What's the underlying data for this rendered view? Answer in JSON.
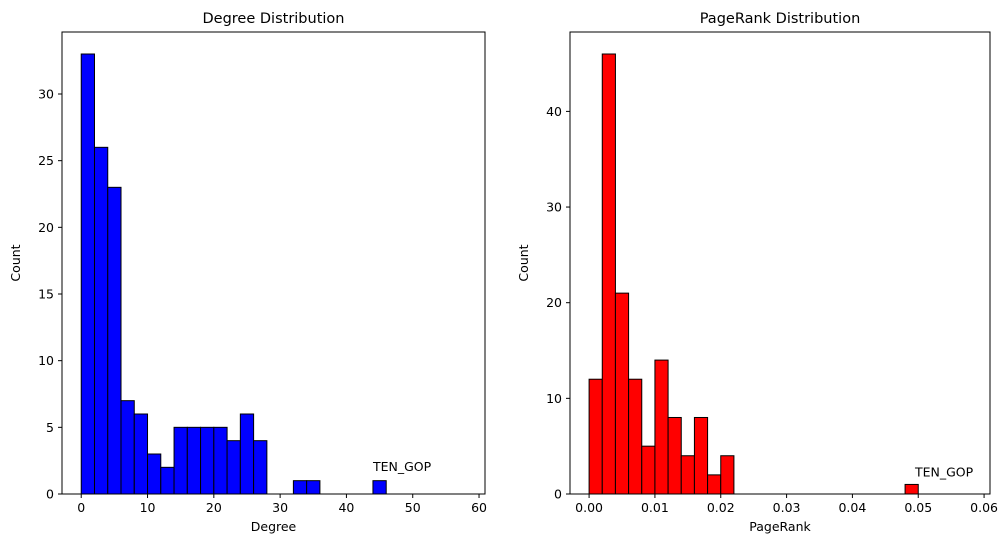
{
  "chart_data": [
    {
      "type": "bar",
      "title": "Degree Distribution",
      "xlabel": "Degree",
      "ylabel": "Count",
      "xlim": [
        -2.9,
        60.9
      ],
      "ylim": [
        0,
        34.65
      ],
      "xticks": [
        0,
        10,
        20,
        30,
        40,
        50,
        60
      ],
      "xtick_labels": [
        "0",
        "10",
        "20",
        "30",
        "40",
        "50",
        "60"
      ],
      "yticks": [
        0,
        5,
        10,
        15,
        20,
        25,
        30
      ],
      "ytick_labels": [
        "0",
        "5",
        "10",
        "15",
        "20",
        "25",
        "30"
      ],
      "bin_start": 0,
      "bin_width": 2,
      "values": [
        33,
        26,
        23,
        7,
        6,
        3,
        2,
        5,
        5,
        5,
        5,
        4,
        6,
        4,
        0,
        0,
        1,
        1,
        0,
        0,
        0,
        0,
        1,
        0,
        0,
        0,
        0,
        0,
        0
      ],
      "color": "#0000ff",
      "edge_color": "#000000",
      "grid": false,
      "annotation": {
        "text": "TEN_GOP",
        "x": 44,
        "y": 1.5
      }
    },
    {
      "type": "bar",
      "title": "PageRank Distribution",
      "xlabel": "PageRank",
      "ylabel": "Count",
      "xlim": [
        -0.0029,
        0.0609
      ],
      "ylim": [
        0,
        48.3
      ],
      "xticks": [
        0,
        0.01,
        0.02,
        0.03,
        0.04,
        0.05,
        0.06
      ],
      "xtick_labels": [
        "0.00",
        "0.01",
        "0.02",
        "0.03",
        "0.04",
        "0.05",
        "0.06"
      ],
      "yticks": [
        0,
        10,
        20,
        30,
        40
      ],
      "ytick_labels": [
        "0",
        "10",
        "20",
        "30",
        "40"
      ],
      "bin_start": 0,
      "bin_width": 0.002,
      "values": [
        12,
        46,
        21,
        12,
        5,
        14,
        8,
        4,
        8,
        2,
        4,
        0,
        0,
        0,
        0,
        0,
        0,
        0,
        0,
        0,
        0,
        0,
        0,
        0,
        1,
        0,
        0,
        0,
        0
      ],
      "color": "#ff0000",
      "edge_color": "#000000",
      "grid": false,
      "annotation": {
        "text": "TEN_GOP",
        "x": 0.0495,
        "y": 1.5
      }
    }
  ]
}
